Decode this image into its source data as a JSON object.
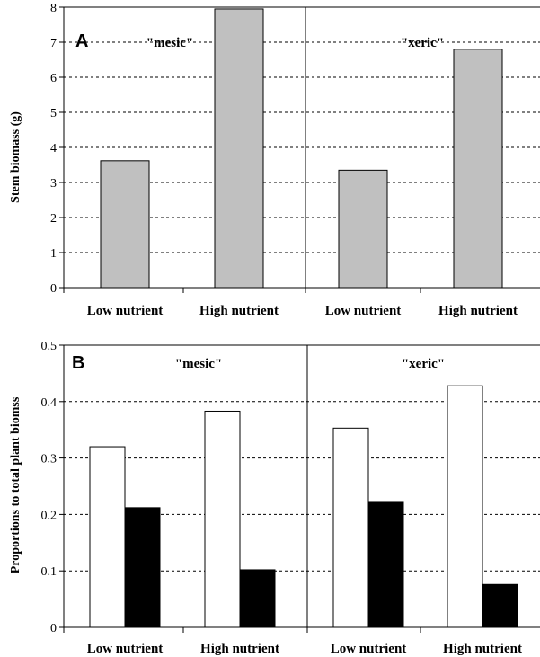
{
  "colors": {
    "grey_bar": "#c0c0c0",
    "white_bar": "#ffffff",
    "black_bar": "#000000",
    "ink": "#000000"
  },
  "chart_data": [
    {
      "type": "bar",
      "panel_label": "A",
      "ylabel": "Stem biomass (g)",
      "ylim": [
        0,
        8
      ],
      "yticks": [
        "0",
        "1",
        "2",
        "3",
        "4",
        "5",
        "6",
        "7",
        "8"
      ],
      "grid": "dashed horizontal",
      "groups": [
        "\"mesic\"",
        "\"xeric\""
      ],
      "categories": [
        "Low nutrient",
        "High nutrient",
        "Low nutrient",
        "High nutrient"
      ],
      "series": [
        {
          "values": [
            3.62,
            7.95,
            3.35,
            6.8
          ],
          "color": "#c0c0c0"
        }
      ]
    },
    {
      "type": "bar",
      "panel_label": "B",
      "ylabel": "Proportions to total plant biomss",
      "ylim": [
        0,
        0.5
      ],
      "yticks": [
        "0",
        "0.1",
        "0.2",
        "0.3",
        "0.4",
        "0.5"
      ],
      "grid": "dashed horizontal",
      "groups": [
        "\"mesic\"",
        "\"xeric\""
      ],
      "categories": [
        "Low nutrient",
        "High nutrient",
        "Low nutrient",
        "High nutrient"
      ],
      "series": [
        {
          "values": [
            0.32,
            0.383,
            0.353,
            0.428
          ],
          "color": "#ffffff"
        },
        {
          "values": [
            0.212,
            0.102,
            0.223,
            0.076
          ],
          "color": "#000000"
        }
      ]
    }
  ]
}
